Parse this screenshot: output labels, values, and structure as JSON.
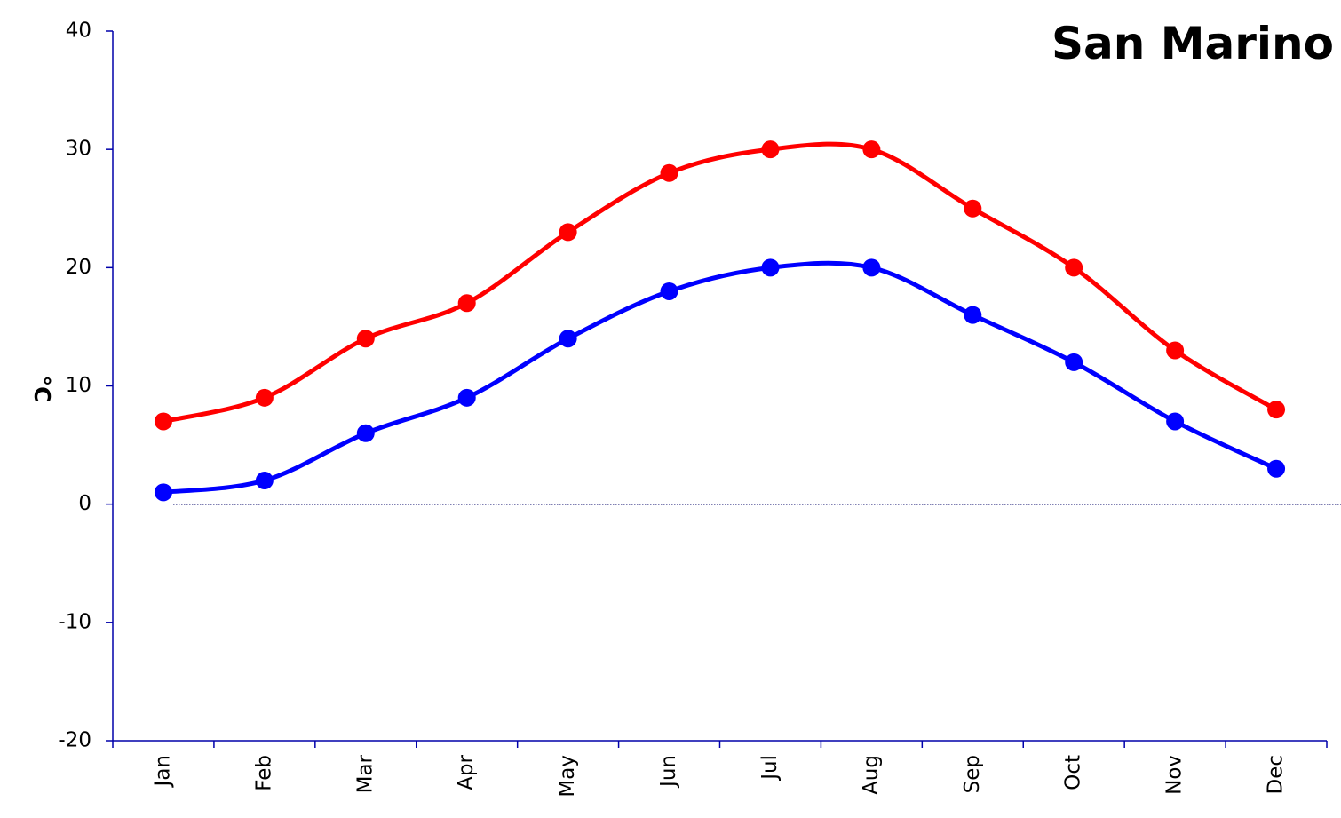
{
  "chart_data": {
    "type": "line",
    "title": "San Marino",
    "ylabel": "°C",
    "xlabel": "",
    "categories": [
      "Jan",
      "Feb",
      "Mar",
      "Apr",
      "May",
      "Jun",
      "Jul",
      "Aug",
      "Sep",
      "Oct",
      "Nov",
      "Dec"
    ],
    "ylim": [
      -20,
      40
    ],
    "yticks": [
      "40",
      "30",
      "20",
      "10",
      "0",
      "-10",
      "-20"
    ],
    "series": [
      {
        "color": "#ff0000",
        "values": [
          7,
          9,
          14,
          17,
          23,
          28,
          30,
          30,
          25,
          20,
          13,
          8
        ]
      },
      {
        "color": "#0000ff",
        "values": [
          1,
          2,
          6,
          9,
          14,
          18,
          20,
          20,
          16,
          12,
          7,
          3
        ]
      }
    ],
    "grid": false,
    "zero_line": "dotted"
  }
}
